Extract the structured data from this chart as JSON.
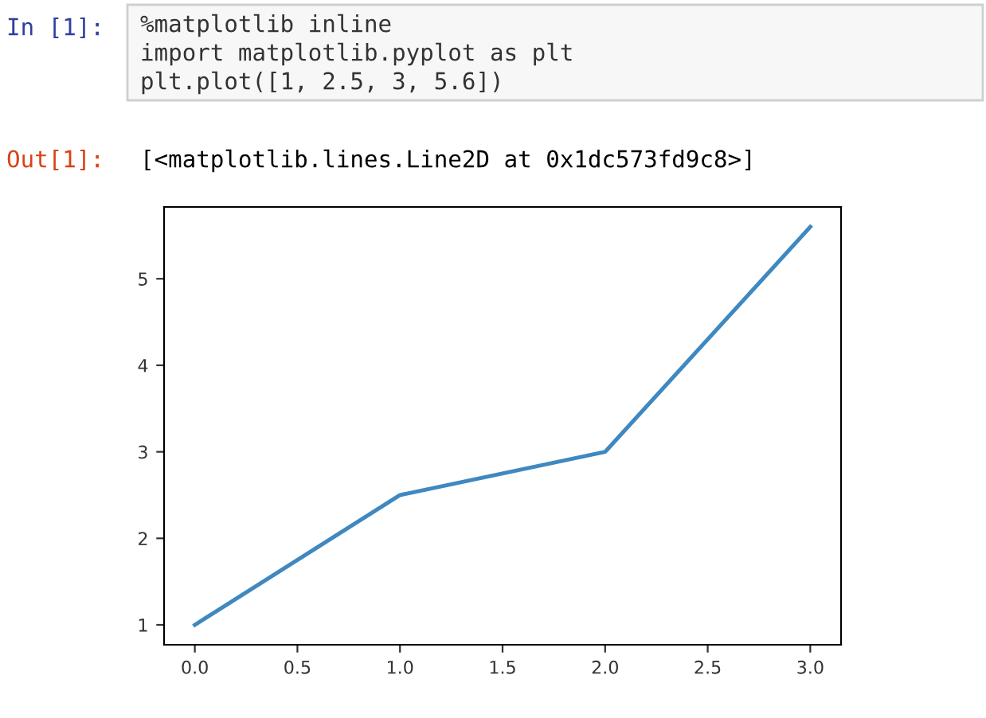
{
  "chart_data": {
    "type": "line",
    "x": [
      0,
      1,
      2,
      3
    ],
    "series": [
      {
        "color": "#3f88c0",
        "values": [
          1,
          2.5,
          3,
          5.6
        ]
      }
    ],
    "xlim": [
      -0.15,
      3.15
    ],
    "xticks": [
      {
        "value": 0,
        "label": "0.0"
      },
      {
        "value": 0.5,
        "label": "0.5"
      },
      {
        "value": 1,
        "label": "1.0"
      },
      {
        "value": 1.5,
        "label": "1.5"
      },
      {
        "value": 2,
        "label": "2.0"
      },
      {
        "value": 2.5,
        "label": "2.5"
      },
      {
        "value": 3,
        "label": "3.0"
      }
    ],
    "ylim": [
      0.77,
      5.83
    ],
    "yticks": [
      1,
      2,
      3,
      4,
      5
    ],
    "grid": false,
    "legend": false,
    "marker": "none",
    "line_style": "solid",
    "annotations": [
      "In [1]:",
      "%matplotlib inline",
      "import matplotlib.pyplot as plt",
      "plt.plot([1, 2.5, 3, 5.6])",
      "Out[1]:",
      "[<matplotlib.lines.Line2D at 0x1dc573fd9c8>]"
    ]
  }
}
